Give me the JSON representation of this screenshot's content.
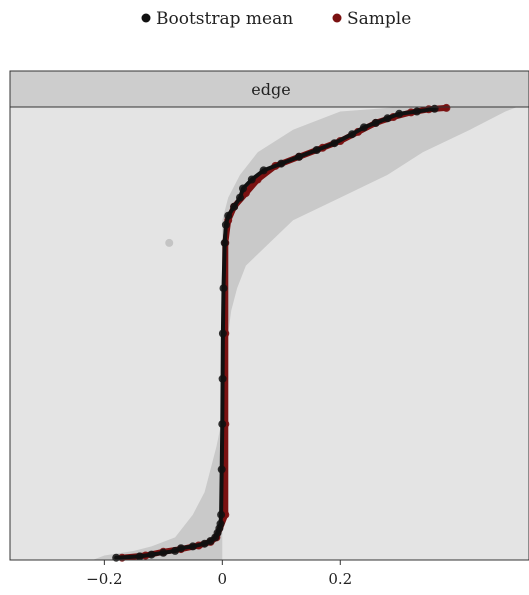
{
  "colors": {
    "bootstrap": "#111111",
    "sample": "#7a1111",
    "band": "#c9c9c9",
    "panel": "#e4e4e4",
    "strip": "#cdcdcd"
  },
  "chart_data": {
    "type": "scatter",
    "facet": "edge",
    "legend": {
      "placement": "top",
      "entries": [
        {
          "key": "bootstrap",
          "label": "Bootstrap mean"
        },
        {
          "key": "sample",
          "label": "Sample"
        }
      ]
    },
    "x_ticks": [
      {
        "value": -0.2,
        "label": "−0.2"
      },
      {
        "value": 0,
        "label": "0"
      },
      {
        "value": 0.2,
        "label": "0.2"
      }
    ],
    "xlim": [
      -0.36,
      0.52
    ],
    "ylim": [
      0,
      1
    ],
    "grid": false,
    "series": [
      {
        "key": "bootstrap",
        "points": [
          [
            -0.18,
            0.005
          ],
          [
            -0.14,
            0.008
          ],
          [
            -0.12,
            0.012
          ],
          [
            -0.1,
            0.016
          ],
          [
            -0.08,
            0.02
          ],
          [
            -0.07,
            0.026
          ],
          [
            -0.05,
            0.03
          ],
          [
            -0.03,
            0.036
          ],
          [
            -0.02,
            0.042
          ],
          [
            -0.012,
            0.05
          ],
          [
            -0.008,
            0.06
          ],
          [
            -0.005,
            0.07
          ],
          [
            -0.003,
            0.08
          ],
          [
            -0.002,
            0.1
          ],
          [
            -0.001,
            0.2
          ],
          [
            0,
            0.3
          ],
          [
            0.0005,
            0.4
          ],
          [
            0.001,
            0.5
          ],
          [
            0.002,
            0.6
          ],
          [
            0.004,
            0.7
          ],
          [
            0.006,
            0.74
          ],
          [
            0.01,
            0.76
          ],
          [
            0.02,
            0.78
          ],
          [
            0.03,
            0.8
          ],
          [
            0.035,
            0.82
          ],
          [
            0.05,
            0.84
          ],
          [
            0.07,
            0.86
          ],
          [
            0.1,
            0.875
          ],
          [
            0.13,
            0.89
          ],
          [
            0.16,
            0.905
          ],
          [
            0.19,
            0.92
          ],
          [
            0.22,
            0.94
          ],
          [
            0.24,
            0.955
          ],
          [
            0.26,
            0.965
          ],
          [
            0.28,
            0.975
          ],
          [
            0.3,
            0.985
          ],
          [
            0.33,
            0.99
          ],
          [
            0.36,
            0.996
          ]
        ]
      },
      {
        "key": "sample",
        "points": [
          [
            -0.17,
            0.005
          ],
          [
            -0.13,
            0.01
          ],
          [
            -0.1,
            0.018
          ],
          [
            -0.07,
            0.024
          ],
          [
            -0.04,
            0.032
          ],
          [
            -0.02,
            0.04
          ],
          [
            -0.01,
            0.05
          ],
          [
            0.005,
            0.1
          ],
          [
            0.005,
            0.3
          ],
          [
            0.005,
            0.5
          ],
          [
            0.005,
            0.7
          ],
          [
            0.01,
            0.75
          ],
          [
            0.02,
            0.78
          ],
          [
            0.04,
            0.81
          ],
          [
            0.06,
            0.84
          ],
          [
            0.09,
            0.87
          ],
          [
            0.13,
            0.89
          ],
          [
            0.17,
            0.91
          ],
          [
            0.2,
            0.925
          ],
          [
            0.23,
            0.945
          ],
          [
            0.26,
            0.965
          ],
          [
            0.29,
            0.978
          ],
          [
            0.32,
            0.988
          ],
          [
            0.35,
            0.995
          ],
          [
            0.38,
            0.998
          ]
        ]
      }
    ],
    "band": {
      "key": "bootstrap-interval",
      "rows": [
        [
          -0.22,
          0.0,
          0
        ],
        [
          -0.2,
          0.01,
          0
        ],
        [
          -0.15,
          0.02,
          0
        ],
        [
          -0.12,
          0.03,
          0
        ],
        [
          -0.08,
          0.05,
          0
        ],
        [
          -0.05,
          0.1,
          0
        ],
        [
          -0.03,
          0.15,
          0
        ],
        [
          -0.02,
          0.2,
          0
        ],
        [
          -0.01,
          0.25,
          0
        ],
        [
          -0.002,
          0.3,
          0
        ],
        [
          0,
          0.4,
          0.01
        ],
        [
          0,
          0.5,
          0.01
        ],
        [
          0,
          0.55,
          0.015
        ],
        [
          0,
          0.6,
          0.025
        ],
        [
          0,
          0.65,
          0.04
        ],
        [
          0,
          0.7,
          0.08
        ],
        [
          0.0,
          0.75,
          0.12
        ],
        [
          0.01,
          0.8,
          0.2
        ],
        [
          0.03,
          0.85,
          0.28
        ],
        [
          0.06,
          0.9,
          0.34
        ],
        [
          0.12,
          0.95,
          0.42
        ],
        [
          0.2,
          0.99,
          0.48
        ],
        [
          0.3,
          1.0,
          0.5
        ]
      ]
    },
    "outlier": [
      -0.09,
      0.7
    ]
  }
}
